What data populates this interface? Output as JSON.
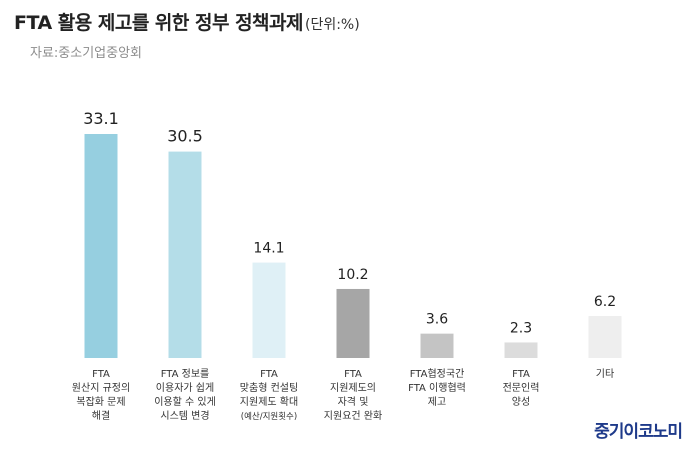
{
  "header": {
    "title": "FTA 활용 제고를 위한 정부 정책과제",
    "unit": "(단위:%)",
    "source": "자료:중소기업중앙회"
  },
  "brand": {
    "name": "중기이코노미"
  },
  "colors": [
    "#96cfe0",
    "#b4dde8",
    "#dff0f6",
    "#a6a6a6",
    "#c4c4c4",
    "#dcdcdc",
    "#eeeeee"
  ],
  "chart_data": {
    "type": "bar",
    "title": "FTA 활용 제고를 위한 정부 정책과제",
    "xlabel": "",
    "ylabel": "",
    "ylim": [
      0,
      33.1
    ],
    "grid": false,
    "categories": [
      [
        "FTA",
        "원산지 규정의",
        "복잡화 문제",
        "해결"
      ],
      [
        "FTA 정보를",
        "이용자가 쉽게",
        "이용할 수 있게",
        "시스템 변경"
      ],
      [
        "FTA",
        "맞춤형 컨설팅",
        "지원제도 확대",
        "(예산/지원횟수)"
      ],
      [
        "FTA",
        "지원제도의",
        "자격 및",
        "지원요건 완화"
      ],
      [
        "FTA협정국간",
        "FTA 이행협력",
        "제고"
      ],
      [
        "FTA",
        "전문인력",
        "양성"
      ],
      [
        "기타"
      ]
    ],
    "values": [
      33.1,
      30.5,
      14.1,
      10.2,
      3.6,
      2.3,
      6.2
    ]
  }
}
